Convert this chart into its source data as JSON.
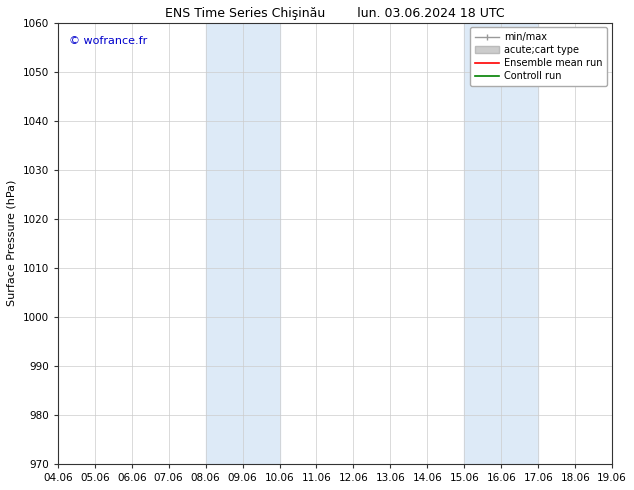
{
  "title_left": "ENS Time Series Chişinău",
  "title_right": "lun. 03.06.2024 18 UTC",
  "ylabel": "Surface Pressure (hPa)",
  "ylim": [
    970,
    1060
  ],
  "yticks": [
    970,
    980,
    990,
    1000,
    1010,
    1020,
    1030,
    1040,
    1050,
    1060
  ],
  "xlim": [
    0,
    15
  ],
  "xtick_labels": [
    "04.06",
    "05.06",
    "06.06",
    "07.06",
    "08.06",
    "09.06",
    "10.06",
    "11.06",
    "12.06",
    "13.06",
    "14.06",
    "15.06",
    "16.06",
    "17.06",
    "18.06",
    "19.06"
  ],
  "shaded_bands": [
    {
      "xmin": 4,
      "xmax": 6,
      "color": "#ddeaf7"
    },
    {
      "xmin": 11,
      "xmax": 13,
      "color": "#ddeaf7"
    }
  ],
  "watermark_text": "© wofrance.fr",
  "watermark_color": "#0000cc",
  "legend_entries": [
    {
      "label": "min/max"
    },
    {
      "label": "acute;cart type"
    },
    {
      "label": "Ensemble mean run"
    },
    {
      "label": "Controll run"
    }
  ],
  "bg_color": "#ffffff",
  "plot_bg_color": "#ffffff",
  "grid_color": "#cccccc",
  "title_fontsize": 9,
  "label_fontsize": 8,
  "tick_fontsize": 7.5,
  "watermark_fontsize": 8,
  "legend_fontsize": 7
}
